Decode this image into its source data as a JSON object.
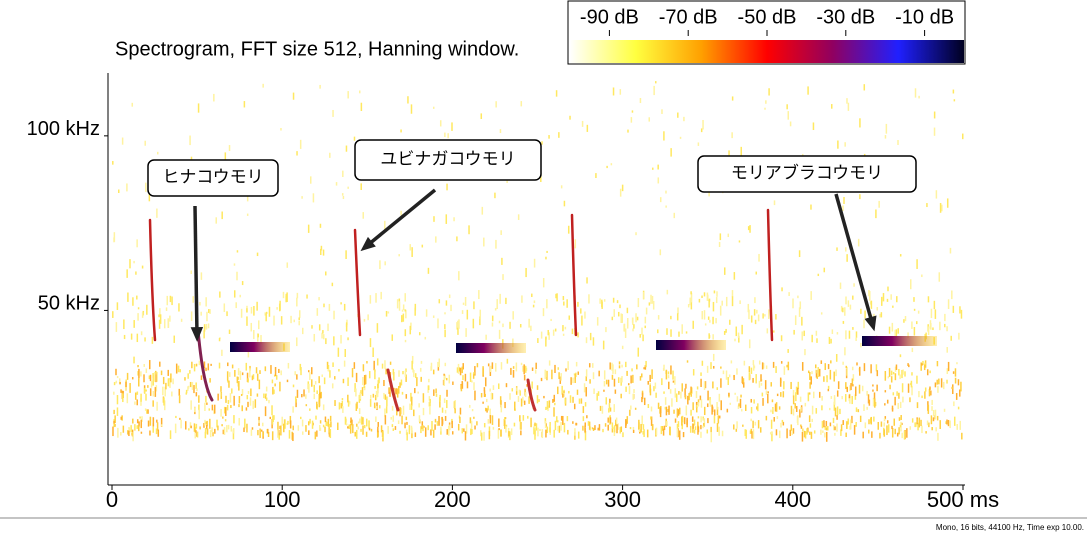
{
  "chart_data": {
    "type": "spectrogram",
    "title": "Spectrogram, FFT size 512, Hanning window.",
    "xlim": [
      0,
      500
    ],
    "xticks": [
      0,
      100,
      200,
      300,
      400,
      {
        "value": 500,
        "label": "500 ms"
      }
    ],
    "ylim": [
      0,
      118
    ],
    "yticks": [
      {
        "value": 50,
        "label": "50 kHz"
      },
      {
        "value": 100,
        "label": "100 kHz"
      }
    ],
    "colorbar": {
      "lim": [
        -100,
        0
      ],
      "ticks": [
        {
          "value": -90,
          "label": "-90 dB"
        },
        {
          "value": -70,
          "label": "-70 dB"
        },
        {
          "value": -50,
          "label": "-50 dB"
        },
        {
          "value": -30,
          "label": "-30 dB"
        },
        {
          "value": -10,
          "label": "-10 dB"
        }
      ],
      "colors": [
        "#ffffff",
        "#ffff40",
        "#ffa000",
        "#ff0000",
        "#900060",
        "#2020ff",
        "#000020"
      ]
    },
    "annotations": [
      {
        "text": "ヒナコウモリ",
        "x": 50,
        "y": 41
      },
      {
        "text": "ユビナガコウモリ",
        "x": 146,
        "y": 67
      },
      {
        "text": "モリアブラコウモリ",
        "x": 448,
        "y": 44
      }
    ],
    "footer": "Mono, 16 bits, 44100 Hz, Time exp 10.00."
  }
}
